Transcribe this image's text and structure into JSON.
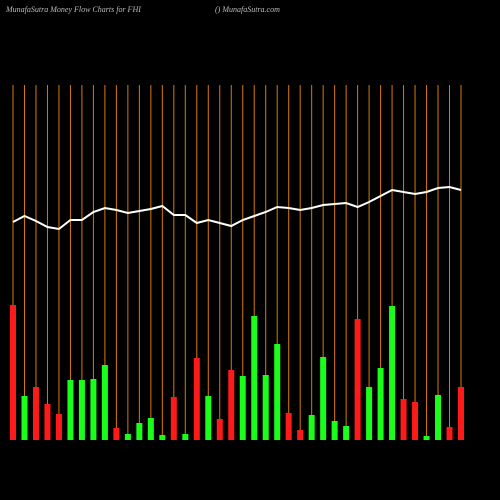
{
  "chart_data": {
    "type": "bar-line",
    "title": "MunafaSutra  Money Flow  Charts for FHI",
    "subtitle": "() MunafaSutra.com",
    "ylim": [
      0,
      360
    ],
    "grid_color": "#d97a00",
    "bars": {
      "values": [
        135,
        44,
        53,
        36,
        26,
        60,
        60,
        61,
        75,
        12,
        6,
        17,
        22,
        5,
        43,
        6,
        82,
        44,
        21,
        70,
        64,
        124,
        65,
        96,
        27,
        10,
        25,
        83,
        19,
        14,
        121,
        53,
        72,
        134,
        41,
        38,
        4,
        45,
        13,
        53
      ],
      "colors": [
        "#ff1a1a",
        "#1aff1a",
        "#ff1a1a",
        "#ff1a1a",
        "#ff1a1a",
        "#1aff1a",
        "#1aff1a",
        "#1aff1a",
        "#1aff1a",
        "#ff1a1a",
        "#1aff1a",
        "#1aff1a",
        "#1aff1a",
        "#1aff1a",
        "#ff1a1a",
        "#1aff1a",
        "#ff1a1a",
        "#1aff1a",
        "#ff1a1a",
        "#ff1a1a",
        "#1aff1a",
        "#1aff1a",
        "#1aff1a",
        "#1aff1a",
        "#ff1a1a",
        "#ff1a1a",
        "#1aff1a",
        "#1aff1a",
        "#1aff1a",
        "#1aff1a",
        "#ff1a1a",
        "#1aff1a",
        "#1aff1a",
        "#1aff1a",
        "#ff1a1a",
        "#ff1a1a",
        "#1aff1a",
        "#1aff1a",
        "#ff1a1a",
        "#ff1a1a"
      ]
    },
    "line": {
      "color": "#ffffff",
      "values": [
        218,
        224,
        219,
        213,
        211,
        220,
        220,
        228,
        232,
        230,
        227,
        229,
        231,
        234,
        225,
        225,
        217,
        220,
        217,
        214,
        220,
        224,
        228,
        233,
        232,
        230,
        232,
        235,
        236,
        237,
        233,
        238,
        244,
        250,
        248,
        246,
        248,
        252,
        253,
        250
      ]
    }
  }
}
